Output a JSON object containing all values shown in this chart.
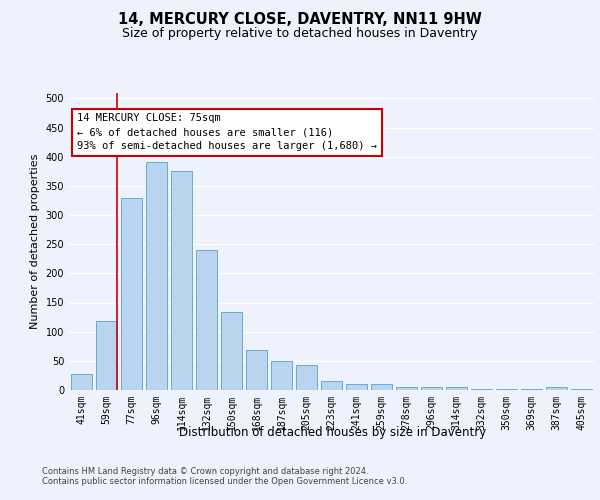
{
  "title": "14, MERCURY CLOSE, DAVENTRY, NN11 9HW",
  "subtitle": "Size of property relative to detached houses in Daventry",
  "xlabel": "Distribution of detached houses by size in Daventry",
  "ylabel": "Number of detached properties",
  "categories": [
    "41sqm",
    "59sqm",
    "77sqm",
    "96sqm",
    "114sqm",
    "132sqm",
    "150sqm",
    "168sqm",
    "187sqm",
    "205sqm",
    "223sqm",
    "241sqm",
    "259sqm",
    "278sqm",
    "296sqm",
    "314sqm",
    "332sqm",
    "350sqm",
    "369sqm",
    "387sqm",
    "405sqm"
  ],
  "values": [
    27,
    119,
    330,
    390,
    375,
    240,
    133,
    68,
    50,
    43,
    15,
    10,
    11,
    5,
    5,
    5,
    1,
    1,
    1,
    6,
    1
  ],
  "bar_color": "#b8d4ee",
  "bar_edge_color": "#6aaad4",
  "red_line_x": 1.43,
  "annotation_line1": "14 MERCURY CLOSE: 75sqm",
  "annotation_line2": "← 6% of detached houses are smaller (116)",
  "annotation_line3": "93% of semi-detached houses are larger (1,680) →",
  "ylim_max": 510,
  "yticks": [
    0,
    50,
    100,
    150,
    200,
    250,
    300,
    350,
    400,
    450,
    500
  ],
  "footer1": "Contains HM Land Registry data © Crown copyright and database right 2024.",
  "footer2": "Contains public sector information licensed under the Open Government Licence v3.0.",
  "bg_color": "#eef2fc",
  "grid_color": "#ffffff",
  "title_fontsize": 10.5,
  "subtitle_fontsize": 9,
  "tick_fontsize": 7,
  "ylabel_fontsize": 8,
  "xlabel_fontsize": 8.5,
  "ann_fontsize": 7.5,
  "footer_fontsize": 6
}
